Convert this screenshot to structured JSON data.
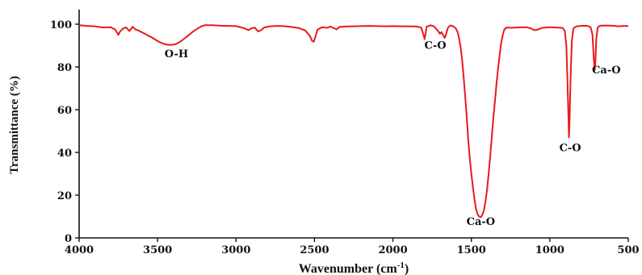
{
  "chart_data": {
    "type": "line",
    "title": "",
    "xlabel": "Wavenumber (cm",
    "xlabel_sup": "-1",
    "xlabel_close": ")",
    "ylabel": "Transmittance (%)",
    "xlim": [
      4000,
      500
    ],
    "ylim": [
      0,
      105
    ],
    "x_ticks": [
      "4000",
      "3500",
      "3000",
      "2500",
      "2000",
      "1500",
      "1000",
      "500"
    ],
    "y_ticks": [
      "0",
      "20",
      "40",
      "60",
      "80",
      "100"
    ],
    "grid": false,
    "legend": "none",
    "line_color": "#e8191c",
    "series": [
      {
        "points": [
          [
            4000,
            99.5
          ],
          [
            3950,
            99.2
          ],
          [
            3900,
            99.0
          ],
          [
            3850,
            98.5
          ],
          [
            3800,
            98.6
          ],
          [
            3770,
            97.5
          ],
          [
            3750,
            95.0
          ],
          [
            3740,
            96.5
          ],
          [
            3720,
            98.0
          ],
          [
            3700,
            98.5
          ],
          [
            3680,
            96.8
          ],
          [
            3660,
            98.8
          ],
          [
            3640,
            97.5
          ],
          [
            3620,
            97.0
          ],
          [
            3600,
            96.2
          ],
          [
            3580,
            95.5
          ],
          [
            3560,
            94.6
          ],
          [
            3540,
            94.0
          ],
          [
            3520,
            93.0
          ],
          [
            3500,
            92.1
          ],
          [
            3480,
            91.4
          ],
          [
            3460,
            90.8
          ],
          [
            3440,
            90.4
          ],
          [
            3420,
            90.3
          ],
          [
            3400,
            90.4
          ],
          [
            3380,
            90.8
          ],
          [
            3360,
            91.6
          ],
          [
            3340,
            92.6
          ],
          [
            3320,
            93.8
          ],
          [
            3300,
            95.0
          ],
          [
            3280,
            96.2
          ],
          [
            3260,
            97.3
          ],
          [
            3240,
            98.2
          ],
          [
            3220,
            99.0
          ],
          [
            3200,
            99.5
          ],
          [
            3150,
            99.5
          ],
          [
            3100,
            99.3
          ],
          [
            3050,
            99.2
          ],
          [
            3000,
            99.1
          ],
          [
            2950,
            98.2
          ],
          [
            2920,
            97.2
          ],
          [
            2900,
            98.1
          ],
          [
            2880,
            98.4
          ],
          [
            2860,
            96.6
          ],
          [
            2840,
            97.2
          ],
          [
            2820,
            98.5
          ],
          [
            2780,
            99.0
          ],
          [
            2740,
            99.2
          ],
          [
            2700,
            99.1
          ],
          [
            2650,
            98.7
          ],
          [
            2600,
            98.2
          ],
          [
            2560,
            97.1
          ],
          [
            2530,
            94.6
          ],
          [
            2515,
            92.2
          ],
          [
            2505,
            91.8
          ],
          [
            2495,
            94.0
          ],
          [
            2480,
            97.5
          ],
          [
            2450,
            98.6
          ],
          [
            2420,
            98.3
          ],
          [
            2400,
            98.9
          ],
          [
            2360,
            97.6
          ],
          [
            2340,
            98.7
          ],
          [
            2300,
            98.9
          ],
          [
            2250,
            99.0
          ],
          [
            2200,
            99.1
          ],
          [
            2150,
            99.2
          ],
          [
            2100,
            99.1
          ],
          [
            2050,
            99.0
          ],
          [
            2000,
            99.1
          ],
          [
            1950,
            99.0
          ],
          [
            1900,
            99.0
          ],
          [
            1850,
            98.9
          ],
          [
            1820,
            98.4
          ],
          [
            1805,
            95.0
          ],
          [
            1798,
            93.0
          ],
          [
            1792,
            95.5
          ],
          [
            1785,
            98.8
          ],
          [
            1760,
            99.5
          ],
          [
            1740,
            99.0
          ],
          [
            1720,
            97.5
          ],
          [
            1700,
            95.5
          ],
          [
            1690,
            96.3
          ],
          [
            1680,
            95.0
          ],
          [
            1670,
            93.6
          ],
          [
            1660,
            95.5
          ],
          [
            1650,
            98.3
          ],
          [
            1635,
            99.4
          ],
          [
            1620,
            99.2
          ],
          [
            1600,
            98.1
          ],
          [
            1590,
            96.8
          ],
          [
            1580,
            94.0
          ],
          [
            1570,
            90.0
          ],
          [
            1560,
            84.0
          ],
          [
            1550,
            76.0
          ],
          [
            1540,
            67.0
          ],
          [
            1530,
            57.0
          ],
          [
            1520,
            46.0
          ],
          [
            1510,
            37.0
          ],
          [
            1500,
            30.0
          ],
          [
            1490,
            23.5
          ],
          [
            1480,
            18.0
          ],
          [
            1470,
            13.5
          ],
          [
            1460,
            11.0
          ],
          [
            1450,
            10.0
          ],
          [
            1440,
            9.7
          ],
          [
            1430,
            10.8
          ],
          [
            1420,
            13.0
          ],
          [
            1410,
            17.0
          ],
          [
            1400,
            22.5
          ],
          [
            1390,
            30.0
          ],
          [
            1380,
            38.0
          ],
          [
            1370,
            47.0
          ],
          [
            1360,
            56.0
          ],
          [
            1350,
            64.0
          ],
          [
            1340,
            72.0
          ],
          [
            1330,
            79.0
          ],
          [
            1320,
            85.5
          ],
          [
            1310,
            91.0
          ],
          [
            1300,
            95.0
          ],
          [
            1290,
            97.5
          ],
          [
            1275,
            98.5
          ],
          [
            1250,
            98.3
          ],
          [
            1200,
            98.5
          ],
          [
            1150,
            98.6
          ],
          [
            1120,
            98.0
          ],
          [
            1100,
            97.2
          ],
          [
            1080,
            97.4
          ],
          [
            1050,
            98.3
          ],
          [
            1000,
            98.6
          ],
          [
            950,
            98.4
          ],
          [
            920,
            98.3
          ],
          [
            905,
            97.0
          ],
          [
            895,
            90.0
          ],
          [
            888,
            75.0
          ],
          [
            882,
            58.0
          ],
          [
            878,
            47.0
          ],
          [
            874,
            55.0
          ],
          [
            868,
            74.0
          ],
          [
            860,
            92.0
          ],
          [
            850,
            98.0
          ],
          [
            830,
            99.0
          ],
          [
            800,
            99.2
          ],
          [
            780,
            99.3
          ],
          [
            760,
            99.2
          ],
          [
            740,
            98.6
          ],
          [
            728,
            95.0
          ],
          [
            720,
            84.0
          ],
          [
            714,
            78.5
          ],
          [
            710,
            82.0
          ],
          [
            704,
            93.0
          ],
          [
            695,
            98.5
          ],
          [
            680,
            99.3
          ],
          [
            650,
            99.4
          ],
          [
            600,
            99.3
          ],
          [
            560,
            99.0
          ],
          [
            530,
            99.2
          ],
          [
            500,
            99.1
          ]
        ]
      }
    ],
    "annotations": [
      {
        "text": "O-H",
        "x": 3380,
        "y": 84.5
      },
      {
        "text": "C-O",
        "x": 1730,
        "y": 88.5
      },
      {
        "text": "Ca-O",
        "x": 1440,
        "y": 6.0
      },
      {
        "text": "C-O",
        "x": 870,
        "y": 40.5
      },
      {
        "text": "Ca-O",
        "x": 640,
        "y": 77.0
      }
    ]
  }
}
